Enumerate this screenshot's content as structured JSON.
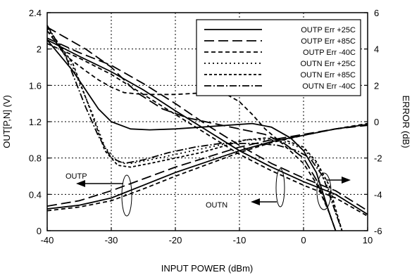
{
  "chart_data": {
    "type": "line",
    "xlabel": "INPUT POWER (dBm)",
    "ylabel_left": "OUT[P,N] (V)",
    "ylabel_right": "ERROR (dB)",
    "xlim": [
      -40,
      10
    ],
    "ylim_left": [
      0,
      2.4
    ],
    "ylim_right": [
      -6,
      6
    ],
    "grid": true,
    "legend_position": "top-right",
    "x_ticks": [
      "-40",
      "-30",
      "-20",
      "-10",
      "0",
      "10"
    ],
    "y_left_ticks": [
      "0",
      "0.4",
      "0.8",
      "1.2",
      "1.6",
      "2",
      "2.4"
    ],
    "y_right_ticks": [
      "-6",
      "-4",
      "-2",
      "0",
      "2",
      "4",
      "6"
    ],
    "annotations": [
      "OUTP",
      "OUTN"
    ],
    "series": [
      {
        "name": "OUTP Err +25C",
        "axis": "right",
        "dash": "",
        "points": [
          [
            -40,
            4.5
          ],
          [
            -36,
            2.8
          ],
          [
            -32,
            0.7
          ],
          [
            -30,
            0.0
          ],
          [
            -27,
            -0.4
          ],
          [
            -24,
            -0.45
          ],
          [
            -20,
            -0.4
          ],
          [
            -16,
            -0.3
          ],
          [
            -12,
            -0.2
          ],
          [
            -8,
            -0.1
          ],
          [
            -5,
            -0.3
          ],
          [
            -2,
            -0.9
          ],
          [
            0,
            -1.6
          ],
          [
            2,
            -2.8
          ],
          [
            4,
            -5.0
          ],
          [
            5,
            -6.0
          ]
        ]
      },
      {
        "name": "OUTP Err +85C",
        "axis": "right",
        "dash": "14,6",
        "points": [
          [
            -40,
            5.2
          ],
          [
            -38,
            4.8
          ],
          [
            -34,
            4.0
          ],
          [
            -30,
            3.0
          ],
          [
            -26,
            1.6
          ],
          [
            -22,
            0.7
          ],
          [
            -18,
            0.2
          ],
          [
            -14,
            -0.1
          ],
          [
            -10,
            -0.4
          ],
          [
            -6,
            -0.7
          ],
          [
            -3,
            -1.2
          ],
          [
            0,
            -2.0
          ],
          [
            2,
            -3.2
          ],
          [
            4,
            -5.0
          ],
          [
            5,
            -6.0
          ]
        ]
      },
      {
        "name": "OUTP Err -40C",
        "axis": "right",
        "dash": "6,4",
        "points": [
          [
            -40,
            5.0
          ],
          [
            -37,
            3.6
          ],
          [
            -34,
            2.8
          ],
          [
            -32,
            2.3
          ],
          [
            -30,
            1.9
          ],
          [
            -28,
            1.6
          ],
          [
            -25,
            1.5
          ],
          [
            -20,
            1.5
          ],
          [
            -15,
            1.6
          ],
          [
            -12,
            1.5
          ],
          [
            -10,
            1.1
          ],
          [
            -8,
            0.4
          ],
          [
            -6,
            -0.4
          ],
          [
            -3,
            -1.3
          ],
          [
            0,
            -2.3
          ],
          [
            2,
            -3.4
          ],
          [
            4,
            -5.0
          ],
          [
            5,
            -6.0
          ]
        ]
      },
      {
        "name": "OUTN Err +25C",
        "axis": "right",
        "dash": "2,4",
        "points": [
          [
            -40,
            5.1
          ],
          [
            -36,
            3.0
          ],
          [
            -33,
            0.5
          ],
          [
            -31,
            -1.4
          ],
          [
            -29,
            -2.2
          ],
          [
            -27,
            -2.3
          ],
          [
            -24,
            -2.1
          ],
          [
            -20,
            -1.8
          ],
          [
            -16,
            -1.5
          ],
          [
            -12,
            -1.2
          ],
          [
            -9,
            -1.0
          ],
          [
            -6,
            -1.0
          ],
          [
            -3,
            -1.1
          ],
          [
            0,
            -1.5
          ],
          [
            2,
            -2.3
          ],
          [
            4,
            -3.8
          ],
          [
            5,
            -5.0
          ],
          [
            6,
            -6.0
          ]
        ]
      },
      {
        "name": "OUTN Err +85C",
        "axis": "right",
        "dash": "4,3",
        "points": [
          [
            -40,
            5.2
          ],
          [
            -36,
            3.2
          ],
          [
            -33,
            0.4
          ],
          [
            -31,
            -1.6
          ],
          [
            -29,
            -2.4
          ],
          [
            -27,
            -2.5
          ],
          [
            -24,
            -2.3
          ],
          [
            -20,
            -2.0
          ],
          [
            -16,
            -1.7
          ],
          [
            -12,
            -1.3
          ],
          [
            -9,
            -1.0
          ],
          [
            -6,
            -0.9
          ],
          [
            -3,
            -1.0
          ],
          [
            0,
            -1.4
          ],
          [
            2,
            -2.2
          ],
          [
            4,
            -3.5
          ],
          [
            5,
            -4.8
          ],
          [
            6,
            -6.0
          ]
        ]
      },
      {
        "name": "OUTN Err -40C",
        "axis": "right",
        "dash": "10,3,2,3",
        "points": [
          [
            -40,
            5.3
          ],
          [
            -37,
            3.5
          ],
          [
            -34,
            0.8
          ],
          [
            -32,
            -0.8
          ],
          [
            -30,
            -2.0
          ],
          [
            -28,
            -2.3
          ],
          [
            -25,
            -2.1
          ],
          [
            -21,
            -1.7
          ],
          [
            -17,
            -1.4
          ],
          [
            -13,
            -1.2
          ],
          [
            -10,
            -1.2
          ],
          [
            -7,
            -1.2
          ],
          [
            -4,
            -1.3
          ],
          [
            -1,
            -1.6
          ],
          [
            1,
            -2.0
          ],
          [
            3,
            -3.0
          ],
          [
            4,
            -4.0
          ],
          [
            5,
            -5.0
          ],
          [
            6,
            -6.0
          ]
        ]
      },
      {
        "name": "OUTP",
        "axis": "left",
        "dash": "",
        "legend": false,
        "points": [
          [
            -40,
            0.24
          ],
          [
            -35,
            0.28
          ],
          [
            -30,
            0.36
          ],
          [
            -25,
            0.5
          ],
          [
            -20,
            0.64
          ],
          [
            -15,
            0.76
          ],
          [
            -10,
            0.88
          ],
          [
            -5,
            0.98
          ],
          [
            0,
            1.05
          ],
          [
            5,
            1.12
          ],
          [
            10,
            1.17
          ]
        ]
      },
      {
        "name": "OUTP +85C",
        "axis": "left",
        "dash": "14,6",
        "legend": false,
        "points": [
          [
            -40,
            0.27
          ],
          [
            -35,
            0.33
          ],
          [
            -30,
            0.44
          ],
          [
            -25,
            0.57
          ],
          [
            -20,
            0.7
          ],
          [
            -15,
            0.81
          ],
          [
            -10,
            0.92
          ],
          [
            -5,
            1.0
          ],
          [
            0,
            1.06
          ],
          [
            5,
            1.12
          ],
          [
            10,
            1.16
          ]
        ]
      },
      {
        "name": "OUTP -40C",
        "axis": "left",
        "dash": "6,4",
        "legend": false,
        "points": [
          [
            -40,
            0.22
          ],
          [
            -35,
            0.26
          ],
          [
            -30,
            0.33
          ],
          [
            -25,
            0.46
          ],
          [
            -20,
            0.6
          ],
          [
            -15,
            0.73
          ],
          [
            -10,
            0.86
          ],
          [
            -5,
            0.97
          ],
          [
            0,
            1.05
          ],
          [
            5,
            1.12
          ],
          [
            10,
            1.18
          ]
        ]
      },
      {
        "name": "OUTN",
        "axis": "left",
        "dash": "",
        "legend": false,
        "points": [
          [
            -40,
            2.1
          ],
          [
            -35,
            1.92
          ],
          [
            -30,
            1.75
          ],
          [
            -25,
            1.55
          ],
          [
            -20,
            1.32
          ],
          [
            -15,
            1.1
          ],
          [
            -10,
            0.88
          ],
          [
            -5,
            0.7
          ],
          [
            0,
            0.54
          ],
          [
            5,
            0.4
          ],
          [
            10,
            0.18
          ]
        ]
      },
      {
        "name": "OUTN +85C",
        "axis": "left",
        "dash": "14,6",
        "legend": false,
        "points": [
          [
            -40,
            2.12
          ],
          [
            -35,
            1.96
          ],
          [
            -30,
            1.82
          ],
          [
            -25,
            1.62
          ],
          [
            -20,
            1.4
          ],
          [
            -15,
            1.16
          ],
          [
            -10,
            0.94
          ],
          [
            -5,
            0.74
          ],
          [
            0,
            0.58
          ],
          [
            5,
            0.44
          ],
          [
            10,
            0.22
          ]
        ]
      },
      {
        "name": "OUTN -40C",
        "axis": "left",
        "dash": "6,4",
        "legend": false,
        "points": [
          [
            -40,
            2.06
          ],
          [
            -35,
            1.9
          ],
          [
            -30,
            1.72
          ],
          [
            -25,
            1.5
          ],
          [
            -20,
            1.28
          ],
          [
            -15,
            1.06
          ],
          [
            -10,
            0.84
          ],
          [
            -5,
            0.66
          ],
          [
            0,
            0.5
          ],
          [
            5,
            0.36
          ],
          [
            10,
            0.16
          ]
        ]
      }
    ]
  }
}
